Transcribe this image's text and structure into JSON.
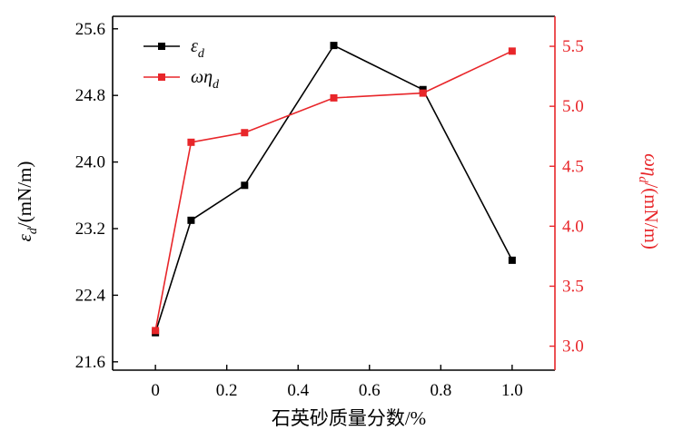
{
  "chart_data": {
    "type": "line",
    "xlabel": "石英砂质量分数/%",
    "ylabel_left": {
      "main": "ε",
      "sub": "d",
      "unit": "/(mN/m)"
    },
    "ylabel_right": {
      "main": "ωη",
      "sub": "d",
      "unit": "/(mN/m)"
    },
    "x": [
      0,
      0.1,
      0.25,
      0.5,
      0.75,
      1.0
    ],
    "xlim": [
      -0.12,
      1.12
    ],
    "xticks": [
      0,
      0.2,
      0.4,
      0.6,
      0.8,
      1.0
    ],
    "xtick_labels": [
      "0",
      "0.2",
      "0.4",
      "0.6",
      "0.8",
      "1.0"
    ],
    "ylim_left": [
      21.5,
      25.75
    ],
    "yticks_left": [
      21.6,
      22.4,
      23.2,
      24.0,
      24.8,
      25.6
    ],
    "ytick_labels_left": [
      "21.6",
      "22.4",
      "23.2",
      "24.0",
      "24.8",
      "25.6"
    ],
    "ylim_right": [
      2.8,
      5.75
    ],
    "yticks_right": [
      3.0,
      3.5,
      4.0,
      4.5,
      5.0,
      5.5
    ],
    "ytick_labels_right": [
      "3.0",
      "3.5",
      "4.0",
      "4.5",
      "5.0",
      "5.5"
    ],
    "legend_position": "top-left",
    "grid": false,
    "series": [
      {
        "name": {
          "main": "ε",
          "sub": "d"
        },
        "axis": "left",
        "color": "#000000",
        "values": [
          21.95,
          23.3,
          23.72,
          25.4,
          24.87,
          22.82
        ]
      },
      {
        "name": {
          "main": "ωη",
          "sub": "d"
        },
        "axis": "right",
        "color": "#e8262a",
        "values": [
          3.13,
          4.7,
          4.78,
          5.07,
          5.11,
          5.46
        ]
      }
    ]
  }
}
